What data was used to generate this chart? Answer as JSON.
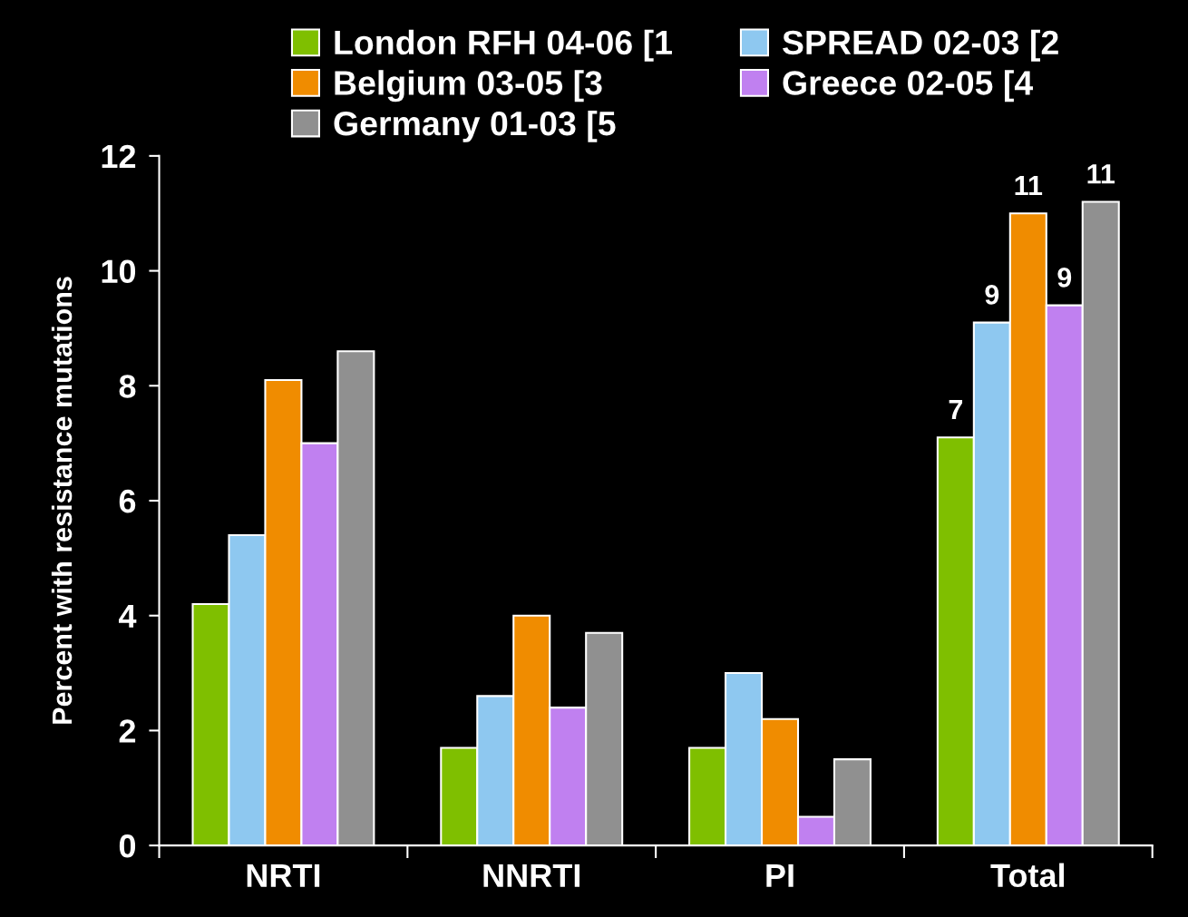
{
  "chart_data": {
    "type": "bar",
    "ylabel": "Percent with resistance mutations",
    "categories": [
      "NRTI",
      "NNRTI",
      "PI",
      "Total"
    ],
    "series": [
      {
        "name": "London RFH 04-06 [1",
        "color": "#7fbf00",
        "values": [
          4.2,
          1.7,
          1.7,
          7.1
        ],
        "value_labels": [
          null,
          null,
          null,
          "7"
        ]
      },
      {
        "name": "SPREAD 02-03 [2",
        "color": "#8ec8f0",
        "values": [
          5.4,
          2.6,
          3.0,
          9.1
        ],
        "value_labels": [
          null,
          null,
          null,
          "9"
        ]
      },
      {
        "name": "Belgium 03-05 [3",
        "color": "#f08c00",
        "values": [
          8.1,
          4.0,
          2.2,
          11.0
        ],
        "value_labels": [
          null,
          null,
          null,
          "11"
        ]
      },
      {
        "name": "Greece 02-05 [4",
        "color": "#c080f0",
        "values": [
          7.0,
          2.4,
          0.5,
          9.4
        ],
        "value_labels": [
          null,
          null,
          null,
          "9"
        ]
      },
      {
        "name": "Germany 01-03 [5",
        "color": "#909090",
        "values": [
          8.6,
          3.7,
          1.5,
          11.2
        ],
        "value_labels": [
          null,
          null,
          null,
          "11"
        ]
      }
    ],
    "ylim": [
      0,
      12
    ],
    "yticks": [
      0,
      2,
      4,
      6,
      8,
      10,
      12
    ],
    "grid": false,
    "legend": "top"
  }
}
